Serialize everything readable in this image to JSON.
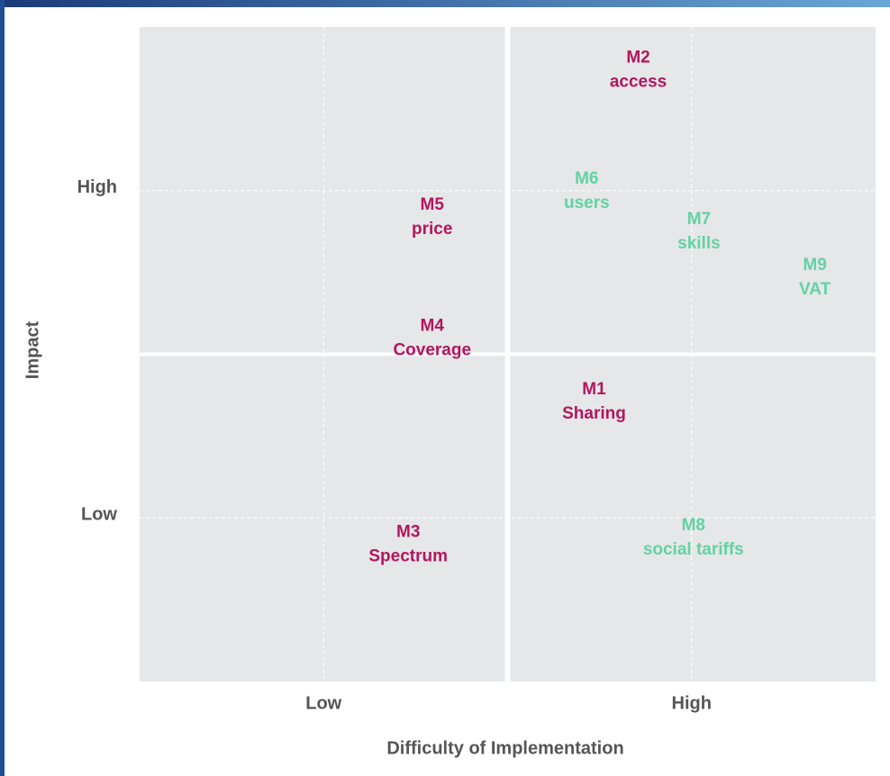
{
  "chart_data": {
    "type": "scatter",
    "x_label": "Difficulty of Implementation",
    "y_label": "Impact",
    "xlim": [
      0,
      4
    ],
    "ylim": [
      0,
      4
    ],
    "xticks": [
      {
        "value": 1,
        "label": "Low"
      },
      {
        "value": 3,
        "label": "High"
      }
    ],
    "yticks": [
      {
        "value": 1,
        "label": "Low"
      },
      {
        "value": 3,
        "label": "High"
      }
    ],
    "grid": true,
    "points": [
      {
        "id": "M2",
        "label": "access",
        "x": 2.71,
        "y": 3.74,
        "color": "#b3165f"
      },
      {
        "id": "M6",
        "label": "users",
        "x": 2.43,
        "y": 3.0,
        "color": "#62d3a4"
      },
      {
        "id": "M5",
        "label": "price",
        "x": 1.59,
        "y": 2.84,
        "color": "#b3165f"
      },
      {
        "id": "M7",
        "label": "skills",
        "x": 3.04,
        "y": 2.75,
        "color": "#62d3a4"
      },
      {
        "id": "M9",
        "label": "VAT",
        "x": 3.67,
        "y": 2.47,
        "color": "#62d3a4"
      },
      {
        "id": "M4",
        "label": "Coverage",
        "x": 1.59,
        "y": 2.1,
        "color": "#b3165f"
      },
      {
        "id": "M1",
        "label": "Sharing",
        "x": 2.47,
        "y": 1.71,
        "color": "#b3165f"
      },
      {
        "id": "M3",
        "label": "Spectrum",
        "x": 1.46,
        "y": 0.84,
        "color": "#b3165f"
      },
      {
        "id": "M8",
        "label": "social tariffs",
        "x": 3.01,
        "y": 0.88,
        "color": "#62d3a4"
      }
    ]
  }
}
